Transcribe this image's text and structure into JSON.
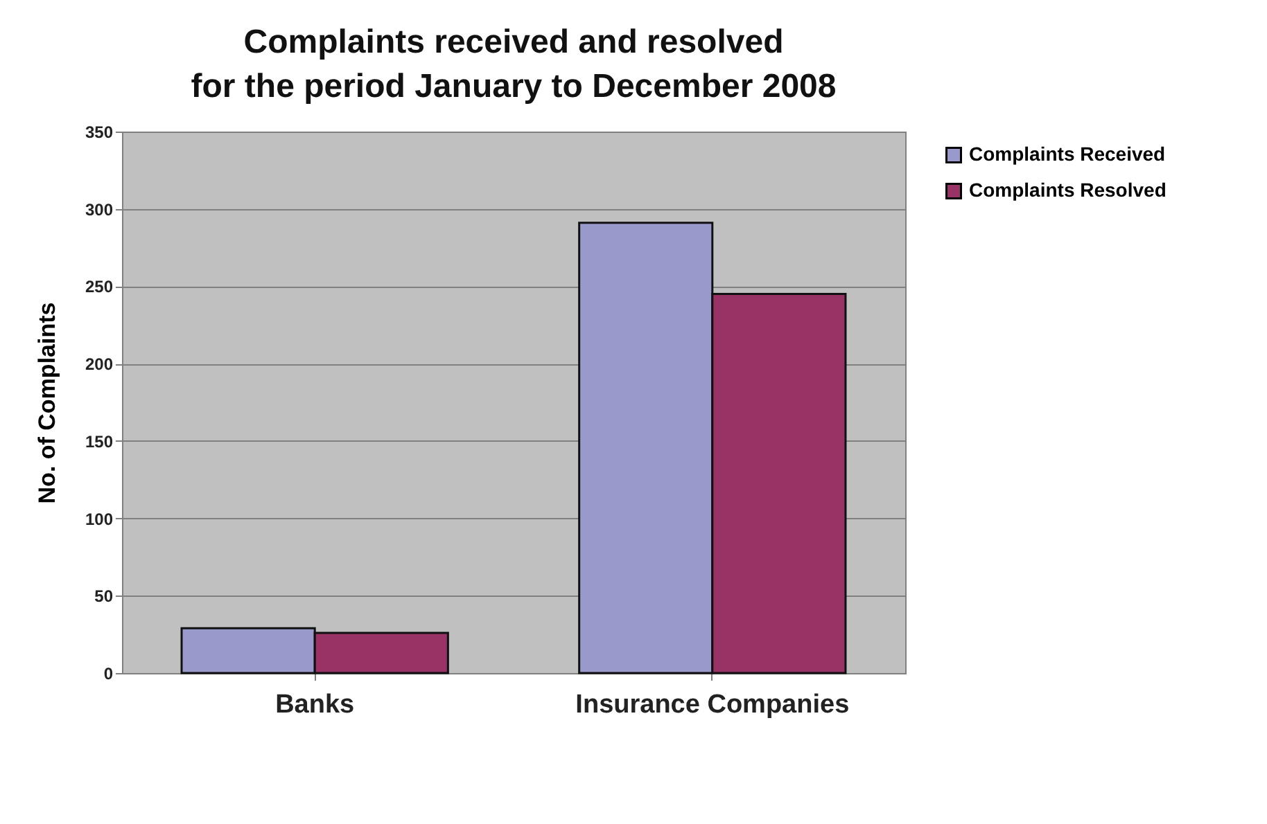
{
  "chart_data": {
    "type": "bar",
    "title": [
      "Complaints received and resolved",
      "for the period January to December 2008"
    ],
    "ylabel": "No. of Complaints",
    "categories": [
      "Banks",
      "Insurance Companies"
    ],
    "series": [
      {
        "name": "Complaints Received",
        "color": "#9999cc",
        "values": [
          29,
          291
        ]
      },
      {
        "name": "Complaints Resolved",
        "color": "#993366",
        "values": [
          26,
          245
        ]
      }
    ],
    "ylim": [
      0,
      350
    ],
    "yticks": [
      0,
      50,
      100,
      150,
      200,
      250,
      300,
      350
    ],
    "grid": "y",
    "legend": "right"
  }
}
